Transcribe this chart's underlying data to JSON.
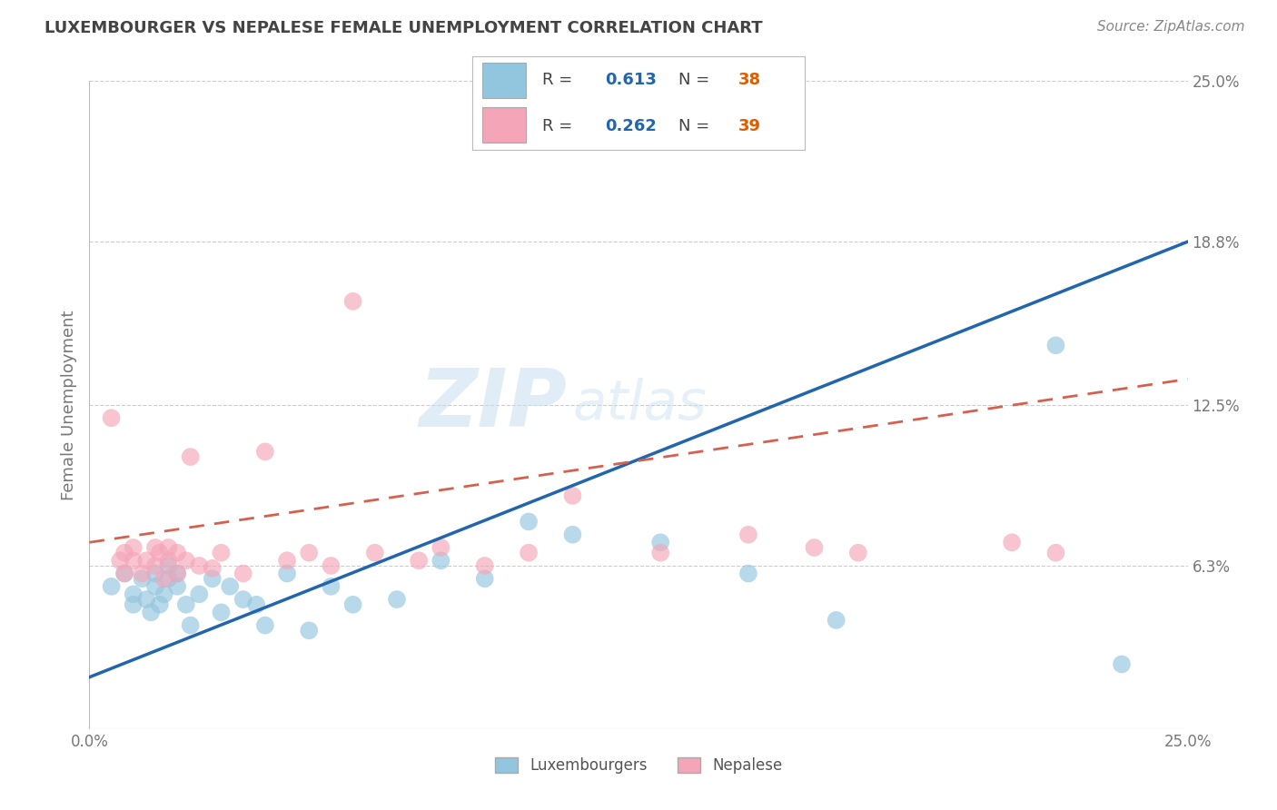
{
  "title": "LUXEMBOURGER VS NEPALESE FEMALE UNEMPLOYMENT CORRELATION CHART",
  "source": "Source: ZipAtlas.com",
  "ylabel": "Female Unemployment",
  "xlim": [
    0,
    0.25
  ],
  "ylim": [
    0,
    0.25
  ],
  "xtick_labels": [
    "0.0%",
    "25.0%"
  ],
  "ytick_labels_right": [
    "25.0%",
    "18.8%",
    "12.5%",
    "6.3%"
  ],
  "ytick_vals_right": [
    0.25,
    0.188,
    0.125,
    0.063
  ],
  "legend_r1": "0.613",
  "legend_n1": "38",
  "legend_r2": "0.262",
  "legend_n2": "39",
  "legend_label1": "Luxembourgers",
  "legend_label2": "Nepalese",
  "blue_color": "#92c5de",
  "pink_color": "#f4a5b8",
  "blue_line_color": "#2166ac",
  "pink_line_color": "#d6604d",
  "r_color": "#2166ac",
  "n_color": "#e05c00",
  "watermark_text": "ZIP",
  "watermark_text2": "atlas",
  "background_color": "#ffffff",
  "grid_color": "#cccccc",
  "blue_line_start_y": 0.02,
  "blue_line_end_y": 0.188,
  "pink_line_start_y": 0.072,
  "pink_line_end_y": 0.135,
  "blue_scatter_x": [
    0.005,
    0.008,
    0.01,
    0.01,
    0.012,
    0.013,
    0.014,
    0.015,
    0.015,
    0.016,
    0.017,
    0.018,
    0.018,
    0.02,
    0.02,
    0.022,
    0.023,
    0.025,
    0.028,
    0.03,
    0.032,
    0.035,
    0.038,
    0.04,
    0.045,
    0.05,
    0.055,
    0.06,
    0.07,
    0.08,
    0.09,
    0.1,
    0.11,
    0.13,
    0.15,
    0.17,
    0.22,
    0.235
  ],
  "blue_scatter_y": [
    0.055,
    0.06,
    0.048,
    0.052,
    0.058,
    0.05,
    0.045,
    0.055,
    0.06,
    0.048,
    0.052,
    0.058,
    0.063,
    0.055,
    0.06,
    0.048,
    0.04,
    0.052,
    0.058,
    0.045,
    0.055,
    0.05,
    0.048,
    0.04,
    0.06,
    0.038,
    0.055,
    0.048,
    0.05,
    0.065,
    0.058,
    0.08,
    0.075,
    0.072,
    0.06,
    0.042,
    0.148,
    0.025
  ],
  "pink_scatter_x": [
    0.005,
    0.007,
    0.008,
    0.008,
    0.01,
    0.01,
    0.012,
    0.013,
    0.015,
    0.015,
    0.016,
    0.017,
    0.018,
    0.018,
    0.02,
    0.02,
    0.022,
    0.023,
    0.025,
    0.028,
    0.03,
    0.035,
    0.04,
    0.045,
    0.05,
    0.055,
    0.06,
    0.065,
    0.075,
    0.08,
    0.09,
    0.1,
    0.11,
    0.13,
    0.15,
    0.165,
    0.175,
    0.21,
    0.22
  ],
  "pink_scatter_y": [
    0.12,
    0.065,
    0.06,
    0.068,
    0.065,
    0.07,
    0.06,
    0.065,
    0.07,
    0.063,
    0.068,
    0.058,
    0.065,
    0.07,
    0.06,
    0.068,
    0.065,
    0.105,
    0.063,
    0.062,
    0.068,
    0.06,
    0.107,
    0.065,
    0.068,
    0.063,
    0.165,
    0.068,
    0.065,
    0.07,
    0.063,
    0.068,
    0.09,
    0.068,
    0.075,
    0.07,
    0.068,
    0.072,
    0.068
  ]
}
